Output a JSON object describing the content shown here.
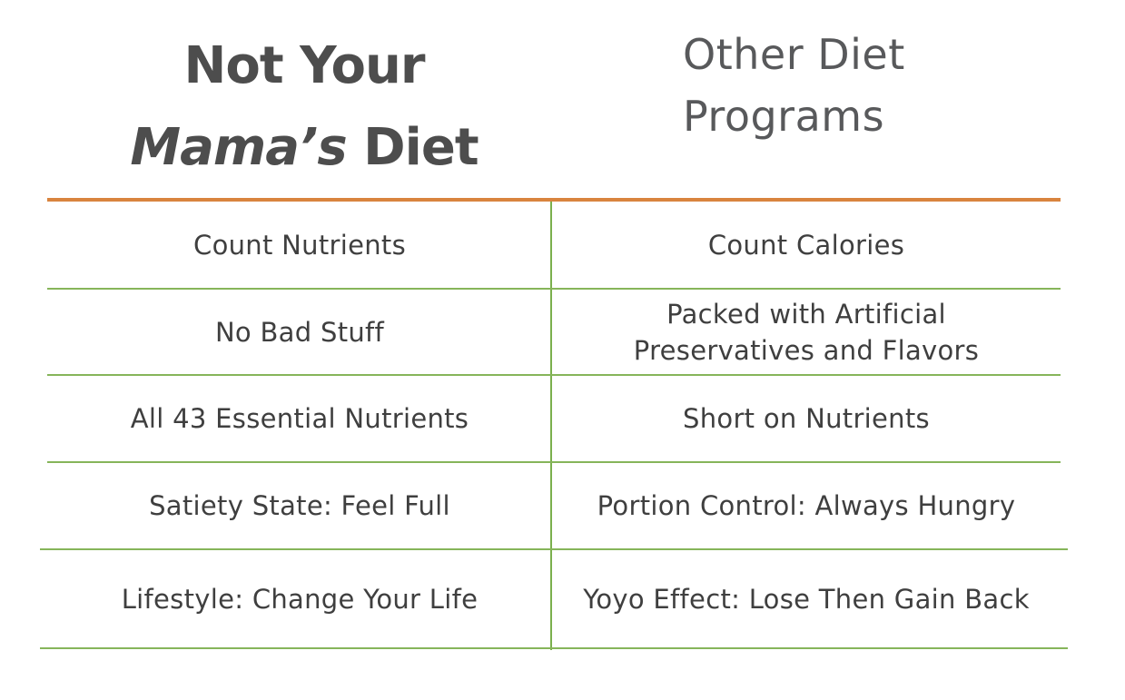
{
  "title_left": {
    "line1": "Not Your",
    "line2_italic": "Mama’s",
    "line2_rest": " Diet"
  },
  "title_right": {
    "line1": "Other Diet",
    "line2": "Programs"
  },
  "rows": [
    {
      "left": "Count Nutrients",
      "right": "Count Calories"
    },
    {
      "left": "No Bad Stuff",
      "right_line1": "Packed with Artificial",
      "right_line2": "Preservatives and Flavors"
    },
    {
      "left": "All 43 Essential Nutrients",
      "right": "Short on Nutrients"
    },
    {
      "left": "Satiety State: Feel Full",
      "right": "Portion Control: Always Hungry"
    },
    {
      "left": "Lifestyle: Change Your Life",
      "right": "Yoyo Effect: Lose Then Gain Back"
    }
  ],
  "colors": {
    "header_rule": "#d9843e",
    "divider": "#86b55a",
    "text": "#3f3f3f"
  }
}
